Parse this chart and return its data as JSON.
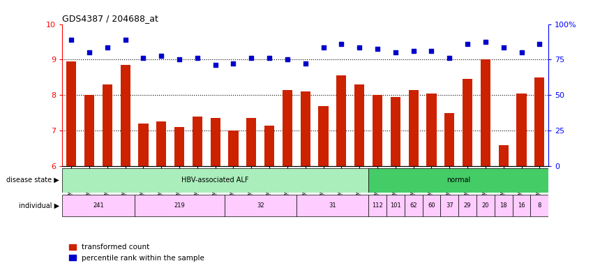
{
  "title": "GDS4387 / 204688_at",
  "samples": [
    "GSM952534",
    "GSM952535",
    "GSM952536",
    "GSM952537",
    "GSM952529",
    "GSM952530",
    "GSM952531",
    "GSM952532",
    "GSM952533",
    "GSM952525",
    "GSM952526",
    "GSM952527",
    "GSM952528",
    "GSM952521",
    "GSM952522",
    "GSM952523",
    "GSM952524",
    "GSM952520",
    "GSM952519",
    "GSM952518",
    "GSM952517",
    "GSM952516",
    "GSM952515",
    "GSM952514",
    "GSM952513",
    "GSM952512",
    "GSM952511"
  ],
  "bar_values": [
    8.95,
    8.0,
    8.3,
    8.85,
    7.2,
    7.25,
    7.1,
    7.4,
    7.35,
    7.0,
    7.35,
    7.15,
    8.15,
    8.1,
    7.7,
    8.55,
    8.3,
    8.0,
    7.95,
    8.15,
    8.05,
    7.5,
    8.45,
    9.0,
    6.6,
    8.05,
    8.5
  ],
  "dot_values": [
    9.55,
    9.2,
    9.35,
    9.55,
    9.05,
    9.1,
    9.0,
    9.05,
    8.85,
    8.9,
    9.05,
    9.05,
    9.0,
    8.9,
    9.35,
    9.45,
    9.35,
    9.3,
    9.2,
    9.25,
    9.25,
    9.05,
    9.45,
    9.5,
    9.35,
    9.2,
    9.45
  ],
  "bar_color": "#cc2200",
  "dot_color": "#0000cc",
  "ymin": 6,
  "ymax": 10,
  "yticks_left": [
    6,
    7,
    8,
    9,
    10
  ],
  "yticks_right": [
    0,
    25,
    50,
    75,
    100
  ],
  "ytick_labels_right": [
    "0",
    "25",
    "50",
    "75",
    "100%"
  ],
  "disease_state_groups": [
    {
      "label": "HBV-associated ALF",
      "start": 0,
      "end": 17,
      "color": "#aaeebb"
    },
    {
      "label": "normal",
      "start": 17,
      "end": 27,
      "color": "#44cc66"
    }
  ],
  "individual_groups": [
    {
      "label": "241",
      "start": 0,
      "end": 4,
      "color": "#ffccff"
    },
    {
      "label": "219",
      "start": 4,
      "end": 9,
      "color": "#ffccff"
    },
    {
      "label": "32",
      "start": 9,
      "end": 13,
      "color": "#ffccff"
    },
    {
      "label": "31",
      "start": 13,
      "end": 17,
      "color": "#ffccff"
    },
    {
      "label": "112",
      "start": 17,
      "end": 18,
      "color": "#ffccff"
    },
    {
      "label": "101",
      "start": 18,
      "end": 19,
      "color": "#ffccff"
    },
    {
      "label": "62",
      "start": 19,
      "end": 20,
      "color": "#ffccff"
    },
    {
      "label": "60",
      "start": 20,
      "end": 21,
      "color": "#ffccff"
    },
    {
      "label": "37",
      "start": 21,
      "end": 22,
      "color": "#ffccff"
    },
    {
      "label": "29",
      "start": 22,
      "end": 23,
      "color": "#ffccff"
    },
    {
      "label": "20",
      "start": 23,
      "end": 24,
      "color": "#ffccff"
    },
    {
      "label": "18",
      "start": 24,
      "end": 25,
      "color": "#ffccff"
    },
    {
      "label": "16",
      "start": 25,
      "end": 26,
      "color": "#ffccff"
    },
    {
      "label": "8",
      "start": 26,
      "end": 27,
      "color": "#ffccff"
    }
  ],
  "row_label_disease": "disease state ▶",
  "row_label_individual": "individual ▶",
  "legend_bar": "transformed count",
  "legend_dot": "percentile rank within the sample"
}
